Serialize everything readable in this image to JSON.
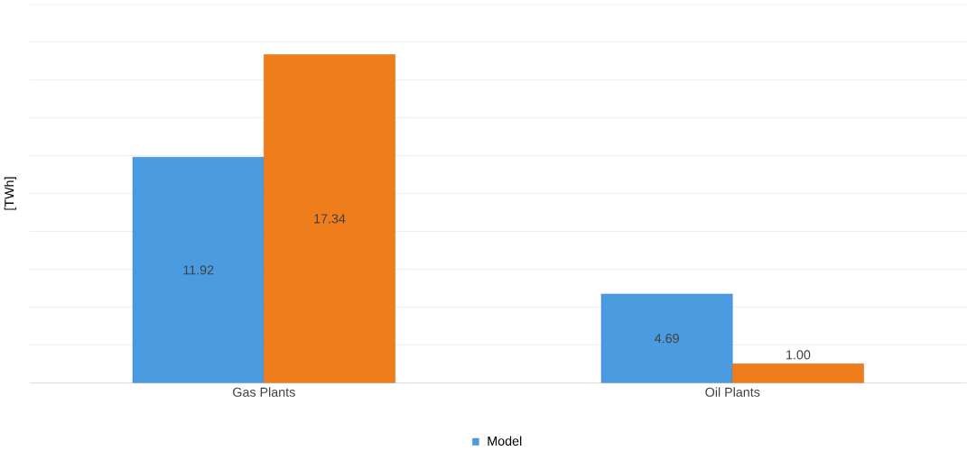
{
  "chart_data": {
    "type": "bar",
    "ylabel": "[TWh]",
    "categories": [
      "Gas Plants",
      "Oil Plants"
    ],
    "series": [
      {
        "name": "Model",
        "color": "#4a9be0",
        "values": [
          11.92,
          4.69
        ],
        "value_labels": [
          "11.92",
          "4.69"
        ]
      },
      {
        "color": "#f07d1c",
        "values": [
          17.34,
          1.0
        ],
        "value_labels": [
          "17.34",
          "1.00"
        ]
      }
    ],
    "ylim": [
      0,
      20
    ],
    "yticks": [
      {
        "value": 0,
        "label": null
      },
      {
        "value": 2,
        "label": null
      },
      {
        "value": 4,
        "label": null
      },
      {
        "value": 6,
        "label": null
      },
      {
        "value": 8,
        "label": null
      },
      {
        "value": 10,
        "label": null
      },
      {
        "value": 12,
        "label": null
      },
      {
        "value": 14,
        "label": null
      },
      {
        "value": 16,
        "label": null
      },
      {
        "value": 18,
        "label": null
      },
      {
        "value": 20,
        "label": null
      }
    ],
    "tick_labels": "x",
    "grid": "y",
    "legend": "bottom"
  }
}
